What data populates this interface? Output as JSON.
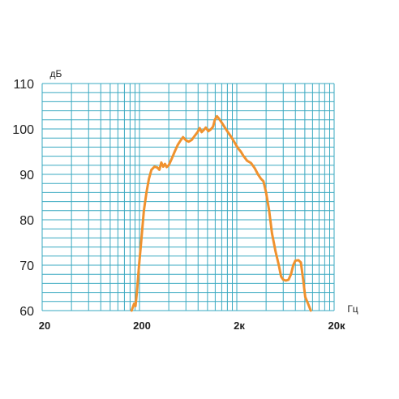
{
  "chart_data": {
    "type": "line",
    "title": "",
    "xlabel": "Гц",
    "ylabel": "дБ",
    "x_scale": "log",
    "xlim": [
      20,
      20000
    ],
    "ylim": [
      60,
      110
    ],
    "grid": true,
    "y_ticks": [
      {
        "value": 110,
        "label": "110"
      },
      {
        "value": 100,
        "label": "100"
      },
      {
        "value": 90,
        "label": "90"
      },
      {
        "value": 80,
        "label": "80"
      },
      {
        "value": 70,
        "label": "70"
      },
      {
        "value": 60,
        "label": "60"
      }
    ],
    "x_ticks": [
      {
        "value": 20,
        "label": "20"
      },
      {
        "value": 200,
        "label": "200"
      },
      {
        "value": 2000,
        "label": "2к"
      },
      {
        "value": 20000,
        "label": "20к"
      }
    ],
    "colors": {
      "line": "#f0922e",
      "grid": "#3aa9c1"
    },
    "series": [
      {
        "name": "",
        "points": [
          [
            166,
            60
          ],
          [
            176,
            61.5
          ],
          [
            182,
            61
          ],
          [
            188,
            64
          ],
          [
            198,
            70
          ],
          [
            210,
            76
          ],
          [
            222,
            82
          ],
          [
            236,
            86
          ],
          [
            250,
            89
          ],
          [
            265,
            91
          ],
          [
            285,
            91.7
          ],
          [
            305,
            91.5
          ],
          [
            320,
            91
          ],
          [
            335,
            92.6
          ],
          [
            350,
            91.7
          ],
          [
            365,
            92.3
          ],
          [
            380,
            91.6
          ],
          [
            400,
            92
          ],
          [
            430,
            93.5
          ],
          [
            460,
            95
          ],
          [
            495,
            96.5
          ],
          [
            530,
            97.5
          ],
          [
            560,
            98.2
          ],
          [
            600,
            97.5
          ],
          [
            640,
            97.2
          ],
          [
            690,
            97.6
          ],
          [
            740,
            98.5
          ],
          [
            790,
            99.3
          ],
          [
            830,
            100.2
          ],
          [
            870,
            99.3
          ],
          [
            920,
            99.8
          ],
          [
            960,
            100.3
          ],
          [
            1020,
            99.5
          ],
          [
            1080,
            99.9
          ],
          [
            1140,
            100.5
          ],
          [
            1190,
            102
          ],
          [
            1250,
            102.8
          ],
          [
            1320,
            102.2
          ],
          [
            1400,
            101.4
          ],
          [
            1500,
            100.4
          ],
          [
            1620,
            99.3
          ],
          [
            1760,
            98.2
          ],
          [
            1900,
            97
          ],
          [
            2050,
            95.8
          ],
          [
            2200,
            95
          ],
          [
            2350,
            94
          ],
          [
            2550,
            93
          ],
          [
            2800,
            92.5
          ],
          [
            3050,
            91.4
          ],
          [
            3300,
            90
          ],
          [
            3550,
            89
          ],
          [
            3750,
            88.5
          ],
          [
            4000,
            86
          ],
          [
            4300,
            82
          ],
          [
            4600,
            77
          ],
          [
            5000,
            73
          ],
          [
            5400,
            70
          ],
          [
            5700,
            67.5
          ],
          [
            6000,
            66.8
          ],
          [
            6400,
            66.6
          ],
          [
            6800,
            66.8
          ],
          [
            7200,
            68
          ],
          [
            7600,
            70
          ],
          [
            8000,
            71
          ],
          [
            8600,
            71.1
          ],
          [
            9100,
            70.6
          ],
          [
            9600,
            67
          ],
          [
            10100,
            63
          ],
          [
            10800,
            61.5
          ],
          [
            11500,
            60
          ]
        ]
      }
    ]
  }
}
